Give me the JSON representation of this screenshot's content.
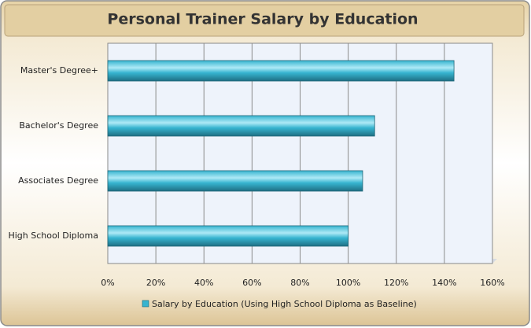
{
  "chart_data": {
    "type": "bar",
    "orientation": "horizontal",
    "title": "Personal Trainer Salary by Education",
    "categories": [
      "Master's Degree+",
      "Bachelor's Degree",
      "Associates Degree",
      "High School Diploma"
    ],
    "series": [
      {
        "name": "Salary by Education (Using High School Diploma as Baseline)",
        "color": "#36b4d0",
        "values": [
          144,
          111,
          106,
          100
        ]
      }
    ],
    "xlim": [
      0,
      160
    ],
    "xticks": [
      {
        "value": 0,
        "label": "0%"
      },
      {
        "value": 20,
        "label": "20%"
      },
      {
        "value": 40,
        "label": "40%"
      },
      {
        "value": 60,
        "label": "60%"
      },
      {
        "value": 80,
        "label": "80%"
      },
      {
        "value": 100,
        "label": "100%"
      },
      {
        "value": 120,
        "label": "120%"
      },
      {
        "value": 140,
        "label": "140%"
      },
      {
        "value": 160,
        "label": "160%"
      }
    ],
    "grid": true,
    "legend": "bottom"
  }
}
